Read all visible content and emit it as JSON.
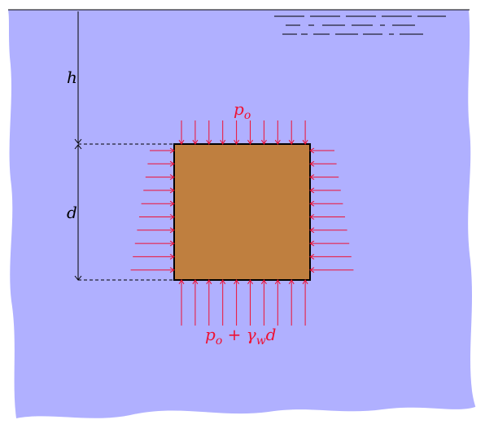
{
  "labels": {
    "h": "h",
    "d": "d",
    "top_pressure": "p",
    "top_pressure_sub": "o",
    "bottom_pressure": "p",
    "bottom_pressure_sub": "o",
    "bottom_plus": " + ",
    "bottom_gamma": "γ",
    "bottom_gamma_sub": "w",
    "bottom_d": "d"
  },
  "colors": {
    "water": "#b0b0ff",
    "block": "#bf7f3f",
    "arrows": "#ee1133",
    "lines": "#000000"
  }
}
